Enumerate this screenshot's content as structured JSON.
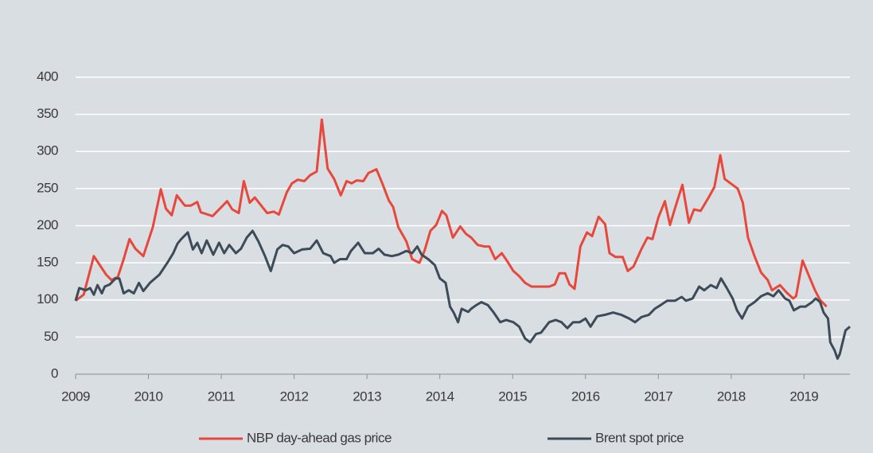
{
  "chart_data": {
    "type": "line",
    "xlim": [
      2009,
      2019.63
    ],
    "xticks": [
      2009,
      2010,
      2011,
      2012,
      2013,
      2014,
      2015,
      2016,
      2017,
      2018,
      2019
    ],
    "ylim": [
      0,
      400
    ],
    "yticks": [
      0,
      50,
      100,
      150,
      200,
      250,
      300,
      350,
      400
    ],
    "grid": true,
    "legend": "bottom",
    "series": [
      {
        "name": "NBP day-ahead gas price",
        "color": "#e8473b",
        "x": [
          2009.0,
          2009.11,
          2009.25,
          2009.42,
          2009.49,
          2009.58,
          2009.66,
          2009.74,
          2009.82,
          2009.93,
          2010.06,
          2010.17,
          2010.24,
          2010.32,
          2010.39,
          2010.5,
          2010.58,
          2010.67,
          2010.72,
          2010.88,
          2011.08,
          2011.15,
          2011.24,
          2011.31,
          2011.39,
          2011.46,
          2011.63,
          2011.72,
          2011.79,
          2011.9,
          2011.97,
          2012.05,
          2012.14,
          2012.22,
          2012.31,
          2012.38,
          2012.46,
          2012.55,
          2012.64,
          2012.72,
          2012.79,
          2012.86,
          2012.95,
          2013.02,
          2013.13,
          2013.21,
          2013.3,
          2013.36,
          2013.43,
          2013.54,
          2013.62,
          2013.72,
          2013.79,
          2013.87,
          2013.95,
          2014.03,
          2014.09,
          2014.18,
          2014.28,
          2014.36,
          2014.43,
          2014.52,
          2014.61,
          2014.68,
          2014.76,
          2014.85,
          2014.92,
          2015.01,
          2015.09,
          2015.17,
          2015.26,
          2015.5,
          2015.58,
          2015.64,
          2015.72,
          2015.78,
          2015.85,
          2015.93,
          2016.02,
          2016.09,
          2016.18,
          2016.27,
          2016.33,
          2016.41,
          2016.51,
          2016.58,
          2016.66,
          2016.77,
          2016.85,
          2016.92,
          2017.0,
          2017.09,
          2017.16,
          2017.24,
          2017.33,
          2017.42,
          2017.49,
          2017.58,
          2017.69,
          2017.77,
          2017.85,
          2017.91,
          2018.02,
          2018.09,
          2018.16,
          2018.23,
          2018.32,
          2018.41,
          2018.5,
          2018.56,
          2018.67,
          2018.76,
          2018.85,
          2018.89,
          2018.98,
          2019.07,
          2019.15,
          2019.22,
          2019.31
        ],
        "values": [
          99,
          107,
          159,
          134,
          127,
          131,
          155,
          182,
          169,
          159,
          198,
          249,
          223,
          214,
          241,
          227,
          227,
          232,
          218,
          213,
          233,
          222,
          217,
          260,
          231,
          238,
          217,
          219,
          215,
          245,
          257,
          262,
          260,
          268,
          273,
          343,
          277,
          263,
          241,
          260,
          257,
          261,
          260,
          271,
          276,
          257,
          234,
          225,
          198,
          179,
          155,
          150,
          166,
          193,
          201,
          220,
          214,
          184,
          199,
          189,
          184,
          174,
          172,
          172,
          155,
          163,
          153,
          139,
          132,
          123,
          118,
          118,
          121,
          136,
          136,
          121,
          115,
          172,
          191,
          186,
          212,
          202,
          163,
          158,
          158,
          139,
          145,
          169,
          184,
          182,
          211,
          233,
          201,
          227,
          255,
          204,
          222,
          220,
          238,
          252,
          295,
          263,
          255,
          250,
          231,
          184,
          159,
          137,
          127,
          113,
          120,
          110,
          102,
          105,
          153,
          132,
          113,
          100,
          91
        ]
      },
      {
        "name": "Brent spot price",
        "color": "#3d4a57",
        "x": [
          2009.0,
          2009.05,
          2009.14,
          2009.2,
          2009.25,
          2009.3,
          2009.36,
          2009.4,
          2009.47,
          2009.55,
          2009.6,
          2009.66,
          2009.73,
          2009.8,
          2009.87,
          2009.93,
          2010.02,
          2010.09,
          2010.15,
          2010.26,
          2010.34,
          2010.4,
          2010.45,
          2010.54,
          2010.61,
          2010.67,
          2010.73,
          2010.8,
          2010.89,
          2010.97,
          2011.04,
          2011.11,
          2011.2,
          2011.27,
          2011.35,
          2011.43,
          2011.51,
          2011.6,
          2011.68,
          2011.77,
          2011.84,
          2011.92,
          2012.0,
          2012.11,
          2012.22,
          2012.31,
          2012.4,
          2012.5,
          2012.55,
          2012.63,
          2012.72,
          2012.78,
          2012.88,
          2012.97,
          2013.08,
          2013.16,
          2013.24,
          2013.34,
          2013.43,
          2013.54,
          2013.62,
          2013.69,
          2013.75,
          2013.84,
          2013.93,
          2014.0,
          2014.08,
          2014.14,
          2014.19,
          2014.25,
          2014.3,
          2014.39,
          2014.43,
          2014.5,
          2014.57,
          2014.66,
          2014.74,
          2014.83,
          2014.91,
          2015.01,
          2015.09,
          2015.17,
          2015.24,
          2015.32,
          2015.39,
          2015.5,
          2015.59,
          2015.67,
          2015.75,
          2015.83,
          2015.92,
          2016.0,
          2016.07,
          2016.16,
          2016.27,
          2016.38,
          2016.49,
          2016.6,
          2016.68,
          2016.77,
          2016.87,
          2016.95,
          2017.03,
          2017.12,
          2017.23,
          2017.32,
          2017.38,
          2017.47,
          2017.56,
          2017.63,
          2017.72,
          2017.8,
          2017.86,
          2017.94,
          2018.02,
          2018.08,
          2018.15,
          2018.23,
          2018.32,
          2018.41,
          2018.5,
          2018.58,
          2018.65,
          2018.74,
          2018.8,
          2018.86,
          2018.95,
          2019.02,
          2019.11,
          2019.16,
          2019.22,
          2019.27,
          2019.33,
          2019.36,
          2019.42,
          2019.46,
          2019.49,
          2019.57,
          2019.63
        ],
        "values": [
          99,
          116,
          113,
          116,
          107,
          120,
          109,
          118,
          121,
          129,
          129,
          109,
          113,
          109,
          123,
          112,
          123,
          129,
          134,
          150,
          163,
          176,
          182,
          191,
          168,
          177,
          163,
          180,
          161,
          177,
          163,
          174,
          163,
          169,
          184,
          193,
          179,
          159,
          139,
          168,
          174,
          172,
          163,
          168,
          169,
          180,
          163,
          159,
          150,
          155,
          155,
          166,
          177,
          163,
          163,
          169,
          161,
          159,
          161,
          166,
          163,
          172,
          161,
          155,
          147,
          129,
          123,
          91,
          83,
          70,
          88,
          84,
          88,
          93,
          97,
          93,
          83,
          70,
          73,
          70,
          64,
          48,
          43,
          54,
          56,
          70,
          73,
          70,
          62,
          70,
          70,
          75,
          64,
          78,
          80,
          83,
          80,
          75,
          70,
          77,
          80,
          88,
          93,
          99,
          99,
          104,
          99,
          102,
          118,
          113,
          120,
          116,
          129,
          116,
          102,
          86,
          75,
          91,
          97,
          105,
          109,
          105,
          113,
          102,
          99,
          86,
          91,
          91,
          97,
          102,
          97,
          83,
          75,
          43,
          32,
          21,
          27,
          59,
          64
        ]
      }
    ]
  }
}
